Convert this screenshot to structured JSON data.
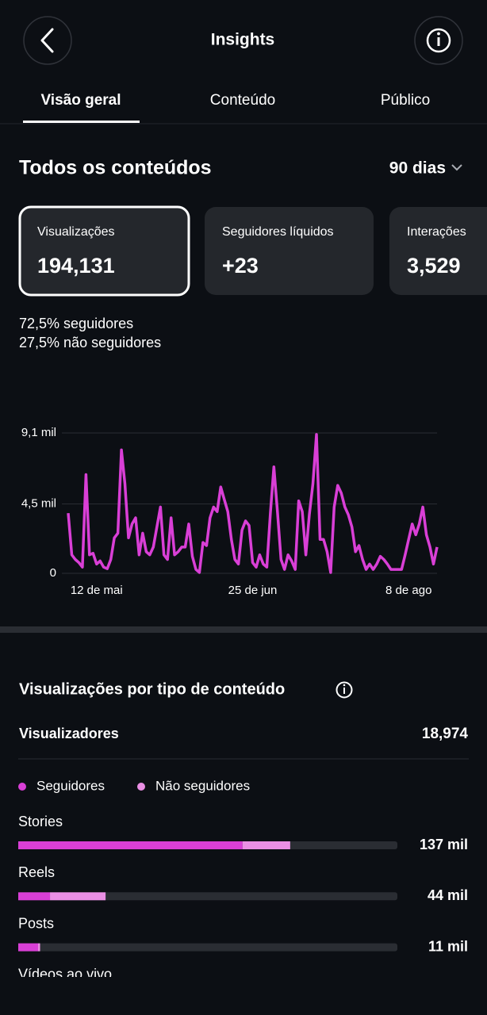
{
  "header": {
    "title": "Insights",
    "tabs": [
      "Visão geral",
      "Conteúdo",
      "Público"
    ]
  },
  "section": {
    "title": "Todos os conteúdos",
    "period": "90 dias"
  },
  "cards": [
    {
      "label": "Visualizações",
      "value": "194,131"
    },
    {
      "label": "Seguidores líquidos",
      "value": "+23"
    },
    {
      "label": "Interações",
      "value": "3,529"
    }
  ],
  "split": [
    {
      "pct": "72,5%",
      "label": "seguidores"
    },
    {
      "pct": "27,5%",
      "label": "não seguidores"
    }
  ],
  "viewers": {
    "label": "Visualizadores",
    "value": "18,974"
  },
  "chart_data": [
    {
      "type": "line",
      "color": "#d93fd6",
      "grid": true,
      "categories": [
        null,
        null,
        null,
        null,
        null,
        null,
        null,
        null,
        "12 de mai",
        null,
        null,
        null,
        null,
        null,
        null,
        null,
        null,
        null,
        null,
        null,
        null,
        null,
        null,
        null,
        null,
        null,
        null,
        null,
        null,
        null,
        null,
        null,
        null,
        null,
        null,
        null,
        null,
        null,
        null,
        null,
        null,
        null,
        null,
        null,
        null,
        null,
        null,
        null,
        null,
        null,
        null,
        null,
        "25 de jun",
        null,
        null,
        null,
        null,
        null,
        null,
        null,
        null,
        null,
        null,
        null,
        null,
        null,
        null,
        null,
        null,
        null,
        null,
        null,
        null,
        null,
        null,
        null,
        null,
        null,
        null,
        null,
        null,
        null,
        null,
        null,
        null,
        null,
        null,
        null,
        null,
        null,
        null,
        null,
        null,
        null,
        null,
        null,
        "8 de ago",
        null,
        null,
        null,
        null,
        null,
        null,
        null,
        null
      ],
      "values": [
        3900,
        1200,
        900,
        700,
        400,
        6400,
        1200,
        1300,
        600,
        800,
        400,
        300,
        900,
        2300,
        2600,
        8000,
        5800,
        2300,
        3200,
        3600,
        1200,
        2600,
        1400,
        1200,
        1700,
        3000,
        4300,
        1200,
        900,
        3600,
        1200,
        1400,
        1700,
        1700,
        3200,
        1100,
        250,
        50,
        2000,
        1800,
        3600,
        4300,
        4000,
        5600,
        4800,
        4000,
        2200,
        900,
        600,
        2800,
        3400,
        3100,
        700,
        400,
        1200,
        600,
        400,
        3900,
        6900,
        4000,
        900,
        250,
        1200,
        800,
        250,
        4700,
        4000,
        1200,
        3800,
        5800,
        9000,
        2200,
        2200,
        1400,
        50,
        4300,
        5700,
        5200,
        4300,
        3800,
        3000,
        1400,
        1800,
        900,
        250,
        600,
        250,
        600,
        1100,
        900,
        600,
        250,
        250,
        250,
        250,
        1200,
        2200,
        3200,
        2500,
        3200,
        4300,
        2500,
        1700,
        600,
        1700
      ],
      "ylim": [
        0,
        9100
      ],
      "yticks": [
        0,
        {
          "value": 4500,
          "label": "4,5 mil"
        },
        {
          "value": 9100,
          "label": "9,1 mil"
        }
      ]
    },
    {
      "type": "stacked-bar",
      "title": "Visualizações por tipo de conteúdo",
      "categories": [
        "Stories",
        "Reels",
        "Posts",
        "Vídeos ao vivo"
      ],
      "series": [
        {
          "name": "Seguidores",
          "color": "#d93fd6",
          "values": [
            113,
            16,
            10,
            null
          ]
        },
        {
          "name": "Não seguidores",
          "color": "#ea8fe4",
          "values": [
            24,
            28,
            1,
            null
          ]
        }
      ],
      "values": [
        137,
        44,
        11,
        null
      ],
      "value_labels": [
        "137 mil",
        "44 mil",
        "11 mil",
        null
      ],
      "xlim": [
        0,
        191
      ]
    }
  ]
}
